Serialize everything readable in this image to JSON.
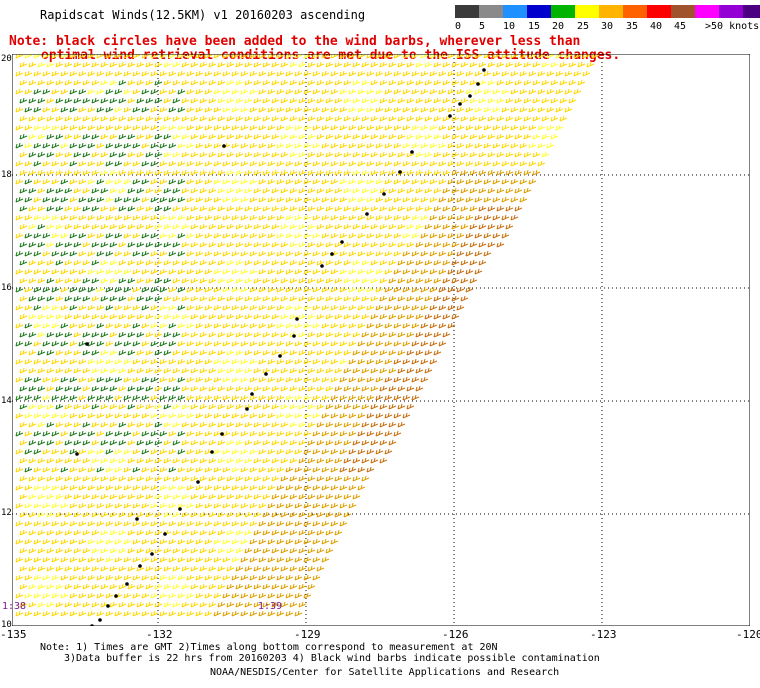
{
  "title": "Rapidscat Winds(12.5KM) v1 20160203 ascending",
  "note": {
    "line1": "Note: black circles have been added to the wind barbs, wherever less than",
    "line2": "optimal wind retrieval conditions are met due to the ISS attitude changes."
  },
  "color_scale": {
    "colors": [
      "#3a3a3a",
      "#8a8a8a",
      "#1e90ff",
      "#0000cd",
      "#00b400",
      "#ffff00",
      "#ffb400",
      "#ff6000",
      "#ff0000",
      "#a0522d",
      "#ff00ff",
      "#9400d3",
      "#4b0082"
    ],
    "labels": [
      "0",
      "5",
      "10",
      "15",
      "20",
      "25",
      "30",
      "35",
      "40",
      "45",
      ">50 knots"
    ]
  },
  "map": {
    "lon_labels": [
      "-135",
      "-132",
      "-129",
      "-126",
      "-123",
      "-120"
    ],
    "lat_labels": [
      "20",
      "18",
      "16",
      "14",
      "12",
      "10"
    ],
    "time_labels": [
      "1:38",
      "1:39"
    ],
    "barb_colors": {
      "calm": "#1f7a1f",
      "light": "#ffff33",
      "moderate": "#ffd700",
      "strong": "#e0a000",
      "stronger": "#c87010"
    }
  },
  "footer": {
    "line1": "Note: 1) Times are GMT 2)Times along bottom correspond to measurement at 20N",
    "line2": "3)Data buffer is 22 hrs from 20160203 4) Black wind barbs indicate possible contamination",
    "credit": "NOAA/NESDIS/Center for Satellite Applications and Research"
  }
}
